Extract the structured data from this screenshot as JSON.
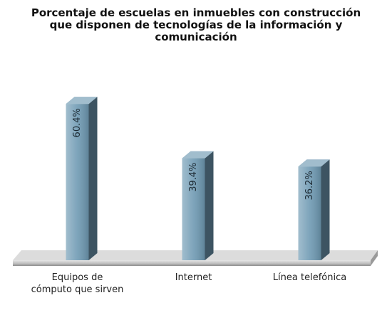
{
  "chart_data": {
    "type": "bar",
    "title": "Porcentaje de escuelas en inmuebles con construcción que disponen de tecnologías de la información y comunicación",
    "categories": [
      "Equipos de cómputo que sirven",
      "Internet",
      "Línea telefónica"
    ],
    "values": [
      60.4,
      39.4,
      36.2
    ],
    "value_labels": [
      "60.4%",
      "39.4%",
      "36.2%"
    ],
    "color": "#6f9ab3"
  }
}
